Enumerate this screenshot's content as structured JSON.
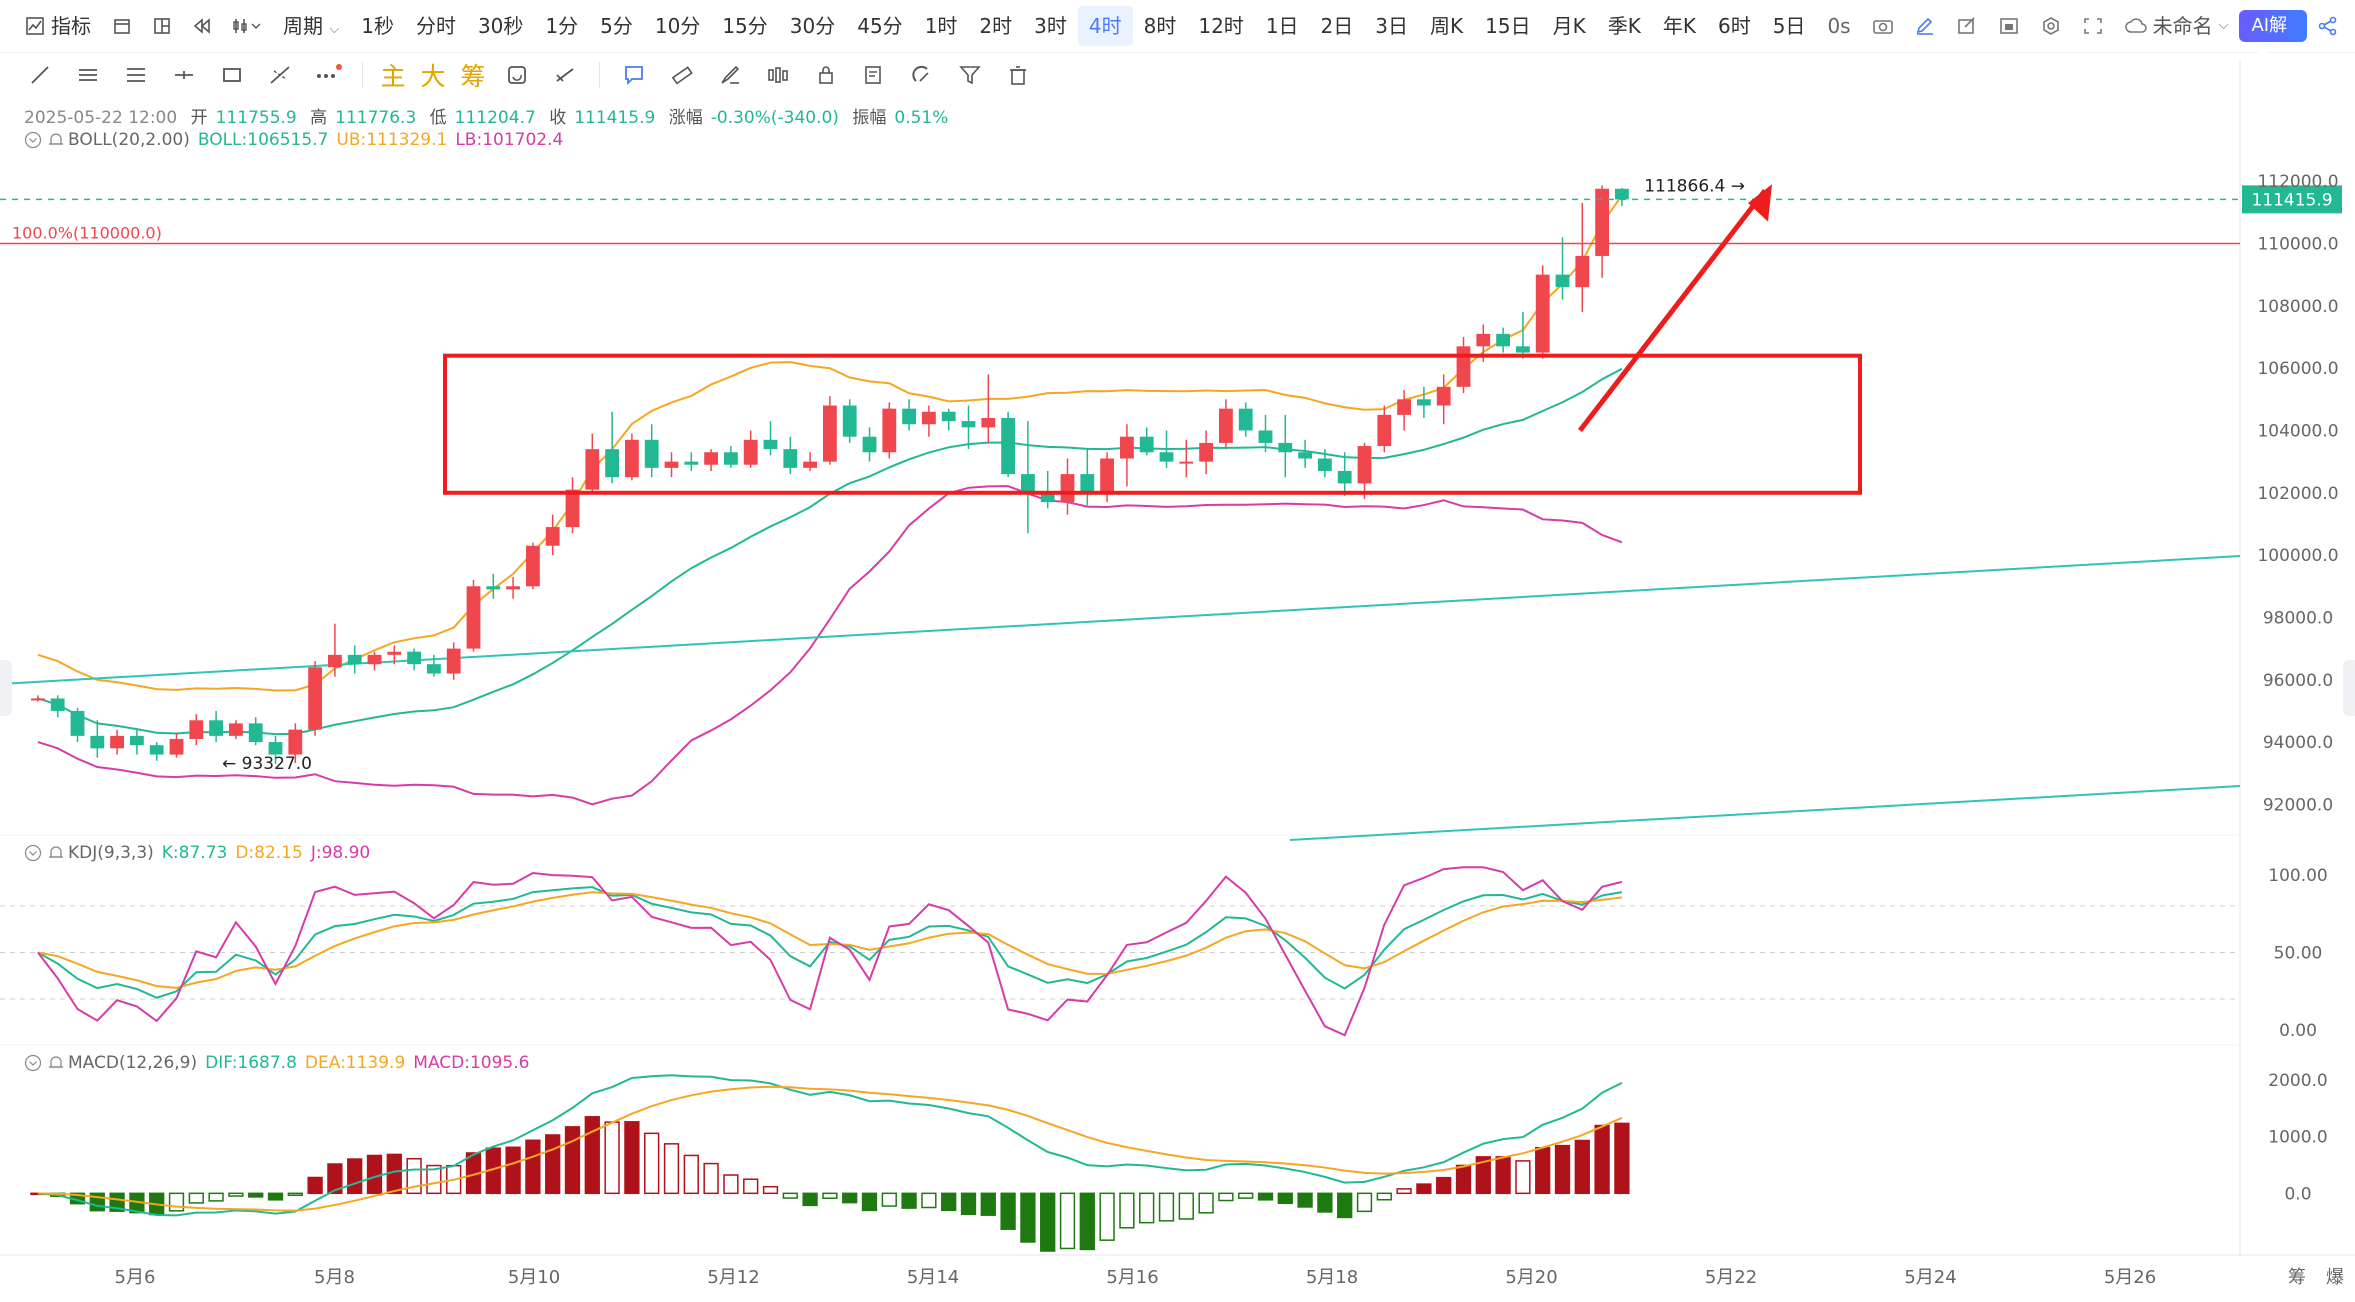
{
  "toolbar": {
    "indicator": "指标",
    "period": "周期",
    "intervals": [
      "1秒",
      "分时",
      "30秒",
      "1分",
      "5分",
      "10分",
      "15分",
      "30分",
      "45分",
      "1时",
      "2时",
      "3时",
      "4时",
      "8时",
      "12时",
      "1日",
      "2日",
      "3日",
      "周K",
      "15日",
      "月K",
      "季K",
      "年K",
      "6时",
      "5日"
    ],
    "active_interval": "4时",
    "countdown": "0s",
    "doc_name": "未命名",
    "ai_label": "AI解读"
  },
  "toolbar2": {
    "main": "主",
    "big": "大",
    "chip": "筹"
  },
  "ohlc": {
    "date": "2025-05-22 12:00",
    "open_label": "开",
    "open": "111755.9",
    "high_label": "高",
    "high": "111776.3",
    "low_label": "低",
    "low": "111204.7",
    "close_label": "收",
    "close": "111415.9",
    "chg_label": "涨幅",
    "chg": "-0.30%(-340.0)",
    "amp_label": "振幅",
    "amp": "0.51%"
  },
  "boll": {
    "name": "BOLL(20,2.00)",
    "mid": "BOLL:106515.7",
    "ub": "UB:111329.1",
    "lb": "LB:101702.4"
  },
  "kdj": {
    "name": "KDJ(9,3,3)",
    "k": "K:87.73",
    "d": "D:82.15",
    "j": "J:98.90"
  },
  "macd": {
    "name": "MACD(12,26,9)",
    "dif": "DIF:1687.8",
    "dea": "DEA:1139.9",
    "macd": "MACD:1095.6"
  },
  "price_axis": [
    "112000.0",
    "110000.0",
    "108000.0",
    "106000.0",
    "104000.0",
    "102000.0",
    "100000.0",
    "98000.0",
    "96000.0",
    "94000.0",
    "92000.0"
  ],
  "kdj_axis": [
    "100.00",
    "50.00",
    "0.00"
  ],
  "macd_axis": [
    "2000.0",
    "1000.0",
    "0.0"
  ],
  "date_axis": [
    "5月6",
    "5月8",
    "5月10",
    "5月12",
    "5月14",
    "5月16",
    "5月18",
    "5月20",
    "5月22",
    "5月24",
    "5月26"
  ],
  "last_price": "111415.9",
  "fib_label": "100.0%(110000.0)",
  "high_marker": "111866.4",
  "low_marker": "93327.0",
  "bottom_right": [
    "筹",
    "爆"
  ],
  "colors": {
    "up": "#f0474f",
    "down": "#22b893",
    "accent": "#4a7cf6",
    "mid": "#22b893",
    "ub": "#f5a623",
    "lb": "#d63ca8"
  },
  "chart_data": {
    "type": "candlestick",
    "interval": "4时",
    "start_label": "5月5",
    "bar_count": 90,
    "candles": [
      [
        95400,
        95500,
        95300,
        95400
      ],
      [
        95400,
        95500,
        94800,
        95000
      ],
      [
        95000,
        95100,
        94000,
        94200
      ],
      [
        94200,
        94700,
        93500,
        93800
      ],
      [
        93800,
        94400,
        93600,
        94200
      ],
      [
        94200,
        94400,
        93600,
        93900
      ],
      [
        93900,
        94000,
        93400,
        93600
      ],
      [
        93600,
        94300,
        93500,
        94100
      ],
      [
        94100,
        94900,
        93900,
        94700
      ],
      [
        94700,
        95000,
        94000,
        94200
      ],
      [
        94200,
        94700,
        94100,
        94600
      ],
      [
        94600,
        94800,
        93900,
        94000
      ],
      [
        94000,
        94200,
        93300,
        93600
      ],
      [
        93600,
        94600,
        93327,
        94400
      ],
      [
        94400,
        96600,
        94200,
        96400
      ],
      [
        96400,
        97800,
        96100,
        96800
      ],
      [
        96800,
        97100,
        96200,
        96500
      ],
      [
        96500,
        96900,
        96300,
        96800
      ],
      [
        96800,
        97100,
        96500,
        96900
      ],
      [
        96900,
        97000,
        96300,
        96500
      ],
      [
        96500,
        96800,
        96100,
        96200
      ],
      [
        96200,
        97200,
        96000,
        97000
      ],
      [
        97000,
        99200,
        96900,
        99000
      ],
      [
        99000,
        99400,
        98600,
        98900
      ],
      [
        98900,
        99300,
        98600,
        99000
      ],
      [
        99000,
        100400,
        98900,
        100300
      ],
      [
        100300,
        101300,
        100000,
        100900
      ],
      [
        100900,
        102500,
        100700,
        102100
      ],
      [
        102100,
        103900,
        102000,
        103400
      ],
      [
        103400,
        104600,
        102300,
        102500
      ],
      [
        102500,
        103900,
        102400,
        103700
      ],
      [
        103700,
        104200,
        102500,
        102800
      ],
      [
        102800,
        103300,
        102500,
        103000
      ],
      [
        103000,
        103300,
        102700,
        102900
      ],
      [
        102900,
        103400,
        102700,
        103300
      ],
      [
        103300,
        103500,
        102800,
        102900
      ],
      [
        102900,
        104000,
        102800,
        103700
      ],
      [
        103700,
        104300,
        103200,
        103400
      ],
      [
        103400,
        103800,
        102600,
        102800
      ],
      [
        102800,
        103300,
        102700,
        103000
      ],
      [
        103000,
        105100,
        102900,
        104800
      ],
      [
        104800,
        105000,
        103600,
        103800
      ],
      [
        103800,
        104100,
        103000,
        103300
      ],
      [
        103300,
        104900,
        103100,
        104700
      ],
      [
        104700,
        105000,
        104000,
        104200
      ],
      [
        104200,
        104800,
        103800,
        104600
      ],
      [
        104600,
        104700,
        104000,
        104300
      ],
      [
        104300,
        104800,
        103400,
        104100
      ],
      [
        104100,
        105800,
        103600,
        104400
      ],
      [
        104400,
        104600,
        102500,
        102600
      ],
      [
        102600,
        104300,
        100700,
        102000
      ],
      [
        102000,
        102700,
        101500,
        101700
      ],
      [
        101700,
        103100,
        101300,
        102600
      ],
      [
        102600,
        103400,
        101600,
        102000
      ],
      [
        102000,
        103300,
        101700,
        103100
      ],
      [
        103100,
        104200,
        102200,
        103800
      ],
      [
        103800,
        104100,
        103200,
        103300
      ],
      [
        103300,
        104000,
        102800,
        103000
      ],
      [
        103000,
        103700,
        102500,
        103000
      ],
      [
        103000,
        104000,
        102600,
        103600
      ],
      [
        103600,
        105000,
        103400,
        104700
      ],
      [
        104700,
        104900,
        103800,
        104000
      ],
      [
        104000,
        104500,
        103300,
        103600
      ],
      [
        103600,
        104500,
        102500,
        103300
      ],
      [
        103300,
        103700,
        102800,
        103100
      ],
      [
        103100,
        103400,
        102500,
        102700
      ],
      [
        102700,
        103300,
        101900,
        102300
      ]
    ],
    "boll_ub_visible_range": [
      94000,
      111330
    ],
    "kdj_range": [
      0,
      100
    ],
    "macd_range": [
      -1000,
      2000
    ],
    "note_rectangle": {
      "price_top": 106300,
      "price_bottom": 102000,
      "from": "5月9",
      "to": "5月22"
    }
  }
}
